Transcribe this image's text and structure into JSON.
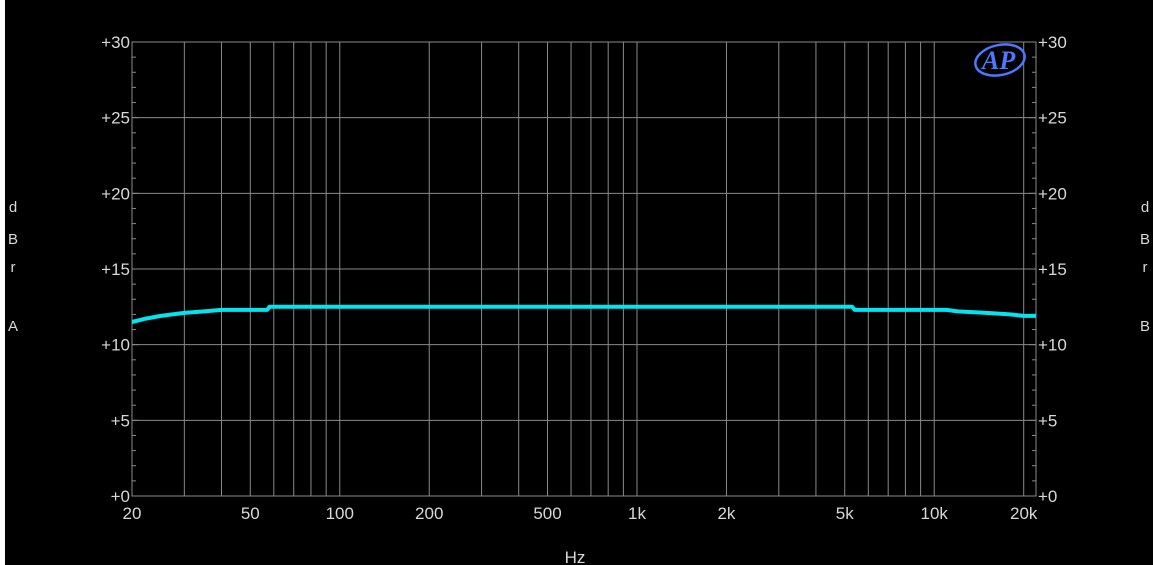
{
  "chart_data": {
    "type": "line",
    "title": "",
    "xlabel": "Hz",
    "ylabel_left": "dBr A",
    "ylabel_right": "dBr B",
    "x_scale": "log",
    "xlim": [
      20,
      22000
    ],
    "ylim": [
      0,
      30
    ],
    "x_ticks": [
      20,
      50,
      100,
      200,
      500,
      1000,
      2000,
      5000,
      10000,
      20000
    ],
    "x_tick_labels": [
      "20",
      "50",
      "100",
      "200",
      "500",
      "1k",
      "2k",
      "5k",
      "10k",
      "20k"
    ],
    "y_ticks": [
      0,
      5,
      10,
      15,
      20,
      25,
      30
    ],
    "y_tick_labels": [
      "+0",
      "+5",
      "+10",
      "+15",
      "+20",
      "+25",
      "+30"
    ],
    "grid": true,
    "series": [
      {
        "color": "#00e5f0",
        "x": [
          20,
          22,
          25,
          30,
          35,
          40,
          50,
          57,
          58,
          100,
          1000,
          5000,
          5300,
          5400,
          10000,
          11000,
          12000,
          15000,
          18000,
          20000,
          22000
        ],
        "y": [
          11.5,
          11.7,
          11.9,
          12.1,
          12.2,
          12.3,
          12.3,
          12.3,
          12.5,
          12.5,
          12.5,
          12.5,
          12.5,
          12.3,
          12.3,
          12.3,
          12.2,
          12.1,
          12.0,
          11.9,
          11.9
        ]
      }
    ],
    "logo": "AP",
    "background": "#000000",
    "grid_color": "#8a8a8a"
  }
}
